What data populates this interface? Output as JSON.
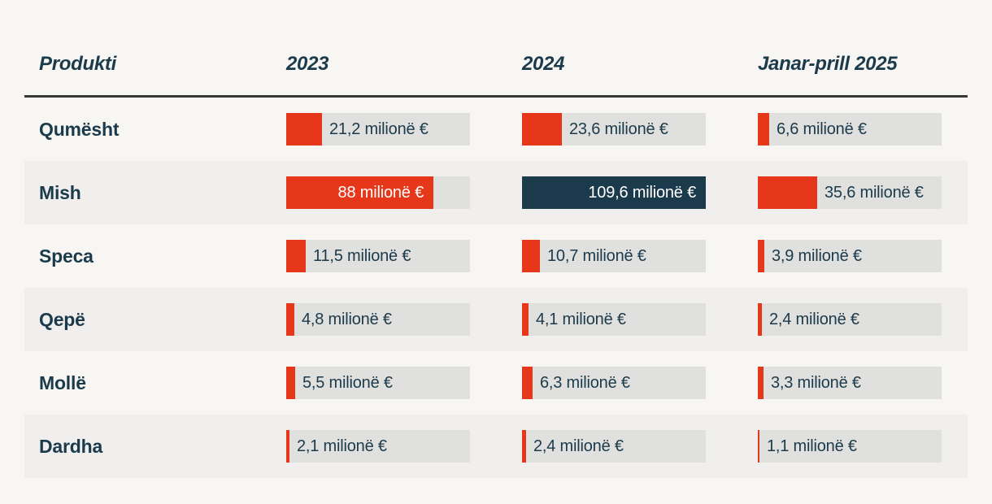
{
  "colors": {
    "background": "#f7f6f3",
    "stripe": "#f0efed",
    "track": "#e0e0de",
    "red": "#e6371a",
    "navy": "#1b3a4b",
    "divider": "#383838",
    "bar_inside_text": "#ffffff"
  },
  "table": {
    "columns": [
      "Produkti",
      "2023",
      "2024",
      "Janar-prill 2025"
    ],
    "unit": "milionë €",
    "rows": [
      {
        "product": "Qumësht",
        "cells": [
          {
            "value": 21.2,
            "label": "21,2 milionë €"
          },
          {
            "value": 23.6,
            "label": "23,6 milionë €"
          },
          {
            "value": 6.6,
            "label": "6,6 milionë €"
          }
        ]
      },
      {
        "product": "Mish",
        "cells": [
          {
            "value": 88,
            "label": "88 milionë €"
          },
          {
            "value": 109.6,
            "label": "109,6 milionë €",
            "highlight": true
          },
          {
            "value": 35.6,
            "label": "35,6 milionë €"
          }
        ]
      },
      {
        "product": "Speca",
        "cells": [
          {
            "value": 11.5,
            "label": "11,5 milionë €"
          },
          {
            "value": 10.7,
            "label": "10,7 milionë €"
          },
          {
            "value": 3.9,
            "label": "3,9 milionë €"
          }
        ]
      },
      {
        "product": "Qepë",
        "cells": [
          {
            "value": 4.8,
            "label": "4,8 milionë €"
          },
          {
            "value": 4.1,
            "label": "4,1 milionë €"
          },
          {
            "value": 2.4,
            "label": "2,4 milionë €"
          }
        ]
      },
      {
        "product": "Mollë",
        "cells": [
          {
            "value": 5.5,
            "label": "5,5 milionë €"
          },
          {
            "value": 6.3,
            "label": "6,3 milionë €"
          },
          {
            "value": 3.3,
            "label": "3,3 milionë €"
          }
        ]
      },
      {
        "product": "Dardha",
        "cells": [
          {
            "value": 2.1,
            "label": "2,1 milionë €"
          },
          {
            "value": 2.4,
            "label": "2,4 milionë €"
          },
          {
            "value": 1.1,
            "label": "1,1 milionë €"
          }
        ]
      }
    ]
  },
  "chart_data": {
    "type": "bar",
    "title": "",
    "categories": [
      "Qumësht",
      "Mish",
      "Speca",
      "Qepë",
      "Mollë",
      "Dardha"
    ],
    "series": [
      {
        "name": "2023",
        "values": [
          21.2,
          88,
          11.5,
          4.8,
          5.5,
          2.1
        ]
      },
      {
        "name": "2024",
        "values": [
          23.6,
          109.6,
          10.7,
          4.1,
          6.3,
          2.4
        ]
      },
      {
        "name": "Janar-prill 2025",
        "values": [
          6.6,
          35.6,
          3.9,
          2.4,
          3.3,
          1.1
        ]
      }
    ],
    "unit": "milionë €",
    "value_axis_max": 109.6,
    "highlight": {
      "category": "Mish",
      "series": "2024"
    },
    "legend_position": "column-headers",
    "grid": false
  }
}
